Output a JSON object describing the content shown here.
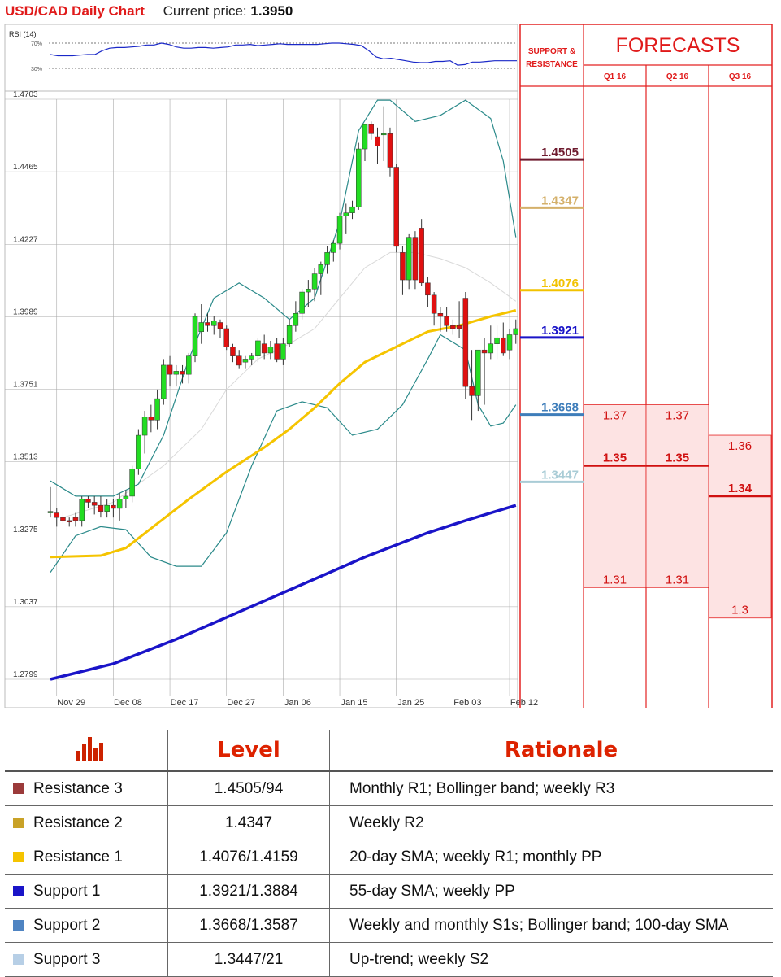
{
  "header": {
    "title": "USD/CAD Daily Chart",
    "current_price_label": "Current price:",
    "current_price": "1.3950"
  },
  "rsi": {
    "label": "RSI (14)",
    "level_high": "70%",
    "level_low": "30%",
    "values": [
      52,
      50,
      50,
      50,
      51,
      52,
      52,
      58,
      62,
      63,
      63,
      64,
      65,
      67,
      67,
      70,
      68,
      64,
      62,
      62,
      63,
      63,
      62,
      63,
      64,
      67,
      67,
      68,
      66,
      67,
      68,
      69,
      68,
      68,
      68,
      68,
      68,
      69,
      70,
      70,
      69,
      68,
      66,
      58,
      48,
      45,
      46,
      44,
      42,
      40,
      39,
      39,
      41,
      41,
      42,
      35,
      36,
      40,
      40,
      41,
      42,
      42,
      42,
      42
    ]
  },
  "chart_data": {
    "type": "candlestick",
    "title": "USD/CAD Daily Chart",
    "y_ticks": [
      "1.4703",
      "1.4465",
      "1.4227",
      "1.3989",
      "1.3751",
      "1.3513",
      "1.3275",
      "1.3037",
      "1.2799"
    ],
    "ylim": [
      1.2799,
      1.4703
    ],
    "x_ticks": [
      "Nov 29",
      "Dec 08",
      "Dec 17",
      "Dec 27",
      "Jan 06",
      "Jan 15",
      "Jan 25",
      "Feb 03",
      "Feb 12"
    ],
    "x_tick_index": [
      1,
      10,
      19,
      28,
      37,
      46,
      55,
      64,
      73
    ],
    "n_bars": 75,
    "candles": [
      [
        1.3345,
        1.343,
        1.333,
        1.335
      ],
      [
        1.3345,
        1.336,
        1.33,
        1.333
      ],
      [
        1.333,
        1.3345,
        1.331,
        1.332
      ],
      [
        1.332,
        1.333,
        1.33,
        1.3315
      ],
      [
        1.333,
        1.3345,
        1.33,
        1.332
      ],
      [
        1.332,
        1.34,
        1.33,
        1.339
      ],
      [
        1.339,
        1.34,
        1.336,
        1.338
      ],
      [
        1.338,
        1.34,
        1.334,
        1.337
      ],
      [
        1.337,
        1.34,
        1.333,
        1.335
      ],
      [
        1.335,
        1.339,
        1.333,
        1.337
      ],
      [
        1.337,
        1.339,
        1.333,
        1.336
      ],
      [
        1.336,
        1.341,
        1.332,
        1.339
      ],
      [
        1.339,
        1.342,
        1.336,
        1.34
      ],
      [
        1.34,
        1.35,
        1.338,
        1.349
      ],
      [
        1.349,
        1.362,
        1.347,
        1.36
      ],
      [
        1.36,
        1.368,
        1.354,
        1.366
      ],
      [
        1.366,
        1.37,
        1.361,
        1.365
      ],
      [
        1.365,
        1.375,
        1.362,
        1.372
      ],
      [
        1.372,
        1.385,
        1.37,
        1.383
      ],
      [
        1.383,
        1.386,
        1.376,
        1.38
      ],
      [
        1.38,
        1.383,
        1.376,
        1.381
      ],
      [
        1.381,
        1.383,
        1.377,
        1.38
      ],
      [
        1.38,
        1.387,
        1.377,
        1.386
      ],
      [
        1.386,
        1.4,
        1.384,
        1.399
      ],
      [
        1.394,
        1.403,
        1.39,
        1.397
      ],
      [
        1.397,
        1.4,
        1.394,
        1.396
      ],
      [
        1.396,
        1.399,
        1.393,
        1.3975
      ],
      [
        1.397,
        1.398,
        1.392,
        1.395
      ],
      [
        1.395,
        1.396,
        1.388,
        1.389
      ],
      [
        1.389,
        1.39,
        1.384,
        1.386
      ],
      [
        1.386,
        1.388,
        1.382,
        1.383
      ],
      [
        1.384,
        1.386,
        1.382,
        1.385
      ],
      [
        1.385,
        1.387,
        1.383,
        1.386
      ],
      [
        1.386,
        1.392,
        1.384,
        1.391
      ],
      [
        1.39,
        1.393,
        1.385,
        1.387
      ],
      [
        1.387,
        1.391,
        1.385,
        1.389
      ],
      [
        1.39,
        1.392,
        1.384,
        1.385
      ],
      [
        1.385,
        1.392,
        1.383,
        1.39
      ],
      [
        1.39,
        1.398,
        1.389,
        1.396
      ],
      [
        1.396,
        1.404,
        1.394,
        1.4
      ],
      [
        1.4,
        1.408,
        1.398,
        1.407
      ],
      [
        1.407,
        1.411,
        1.402,
        1.408
      ],
      [
        1.408,
        1.415,
        1.404,
        1.413
      ],
      [
        1.413,
        1.417,
        1.406,
        1.416
      ],
      [
        1.416,
        1.422,
        1.413,
        1.42
      ],
      [
        1.42,
        1.424,
        1.417,
        1.423
      ],
      [
        1.423,
        1.433,
        1.421,
        1.432
      ],
      [
        1.432,
        1.436,
        1.426,
        1.433
      ],
      [
        1.433,
        1.437,
        1.431,
        1.435
      ],
      [
        1.435,
        1.456,
        1.434,
        1.454
      ],
      [
        1.454,
        1.462,
        1.45,
        1.462
      ],
      [
        1.462,
        1.463,
        1.457,
        1.459
      ],
      [
        1.458,
        1.461,
        1.449,
        1.455
      ],
      [
        1.459,
        1.468,
        1.45,
        1.459
      ],
      [
        1.459,
        1.461,
        1.445,
        1.448
      ],
      [
        1.448,
        1.449,
        1.42,
        1.422
      ],
      [
        1.42,
        1.422,
        1.406,
        1.411
      ],
      [
        1.411,
        1.426,
        1.408,
        1.425
      ],
      [
        1.425,
        1.427,
        1.408,
        1.411
      ],
      [
        1.428,
        1.431,
        1.409,
        1.41
      ],
      [
        1.41,
        1.412,
        1.402,
        1.406
      ],
      [
        1.406,
        1.407,
        1.396,
        1.4
      ],
      [
        1.4,
        1.402,
        1.394,
        1.399
      ],
      [
        1.399,
        1.402,
        1.394,
        1.396
      ],
      [
        1.396,
        1.398,
        1.393,
        1.395
      ],
      [
        1.396,
        1.404,
        1.392,
        1.395
      ],
      [
        1.405,
        1.407,
        1.372,
        1.376
      ],
      [
        1.376,
        1.388,
        1.365,
        1.373
      ],
      [
        1.373,
        1.388,
        1.368,
        1.388
      ],
      [
        1.388,
        1.392,
        1.37,
        1.387
      ],
      [
        1.387,
        1.396,
        1.385,
        1.39
      ],
      [
        1.39,
        1.396,
        1.385,
        1.392
      ],
      [
        1.392,
        1.397,
        1.386,
        1.387
      ],
      [
        1.388,
        1.395,
        1.385,
        1.393
      ],
      [
        1.393,
        1.398,
        1.39,
        1.395
      ]
    ],
    "sma_yellow": [
      [
        0,
        1.32
      ],
      [
        8,
        1.3205
      ],
      [
        12,
        1.323
      ],
      [
        17,
        1.331
      ],
      [
        22,
        1.339
      ],
      [
        28,
        1.348
      ],
      [
        34,
        1.356
      ],
      [
        38,
        1.362
      ],
      [
        42,
        1.369
      ],
      [
        46,
        1.377
      ],
      [
        50,
        1.384
      ],
      [
        55,
        1.389
      ],
      [
        60,
        1.394
      ],
      [
        65,
        1.396
      ],
      [
        70,
        1.399
      ],
      [
        74,
        1.401
      ]
    ],
    "sma_blue": [
      [
        0,
        1.2799
      ],
      [
        10,
        1.285
      ],
      [
        20,
        1.293
      ],
      [
        30,
        1.302
      ],
      [
        40,
        1.311
      ],
      [
        50,
        1.32
      ],
      [
        60,
        1.328
      ],
      [
        66,
        1.332
      ],
      [
        74,
        1.337
      ]
    ],
    "sma_gray": [
      [
        2,
        1.333
      ],
      [
        10,
        1.338
      ],
      [
        18,
        1.35
      ],
      [
        24,
        1.362
      ],
      [
        28,
        1.375
      ],
      [
        33,
        1.385
      ],
      [
        38,
        1.39
      ],
      [
        42,
        1.395
      ],
      [
        46,
        1.405
      ],
      [
        50,
        1.415
      ],
      [
        54,
        1.42
      ],
      [
        58,
        1.42
      ],
      [
        62,
        1.418
      ],
      [
        66,
        1.415
      ],
      [
        70,
        1.41
      ],
      [
        74,
        1.404
      ]
    ],
    "bb_upper": [
      [
        0,
        1.345
      ],
      [
        4,
        1.34
      ],
      [
        10,
        1.34
      ],
      [
        14,
        1.344
      ],
      [
        18,
        1.36
      ],
      [
        22,
        1.385
      ],
      [
        26,
        1.405
      ],
      [
        30,
        1.41
      ],
      [
        34,
        1.405
      ],
      [
        38,
        1.398
      ],
      [
        42,
        1.405
      ],
      [
        46,
        1.43
      ],
      [
        49,
        1.46
      ],
      [
        52,
        1.47
      ],
      [
        54,
        1.47
      ],
      [
        58,
        1.463
      ],
      [
        62,
        1.465
      ],
      [
        66,
        1.47
      ],
      [
        70,
        1.464
      ],
      [
        72,
        1.45
      ],
      [
        74,
        1.425
      ]
    ],
    "bb_lower": [
      [
        0,
        1.315
      ],
      [
        4,
        1.327
      ],
      [
        8,
        1.33
      ],
      [
        12,
        1.329
      ],
      [
        16,
        1.32
      ],
      [
        20,
        1.317
      ],
      [
        24,
        1.317
      ],
      [
        28,
        1.328
      ],
      [
        32,
        1.35
      ],
      [
        36,
        1.368
      ],
      [
        40,
        1.371
      ],
      [
        44,
        1.369
      ],
      [
        48,
        1.36
      ],
      [
        52,
        1.362
      ],
      [
        56,
        1.37
      ],
      [
        60,
        1.385
      ],
      [
        62,
        1.393
      ],
      [
        66,
        1.388
      ],
      [
        68,
        1.37
      ],
      [
        70,
        1.363
      ],
      [
        72,
        1.364
      ],
      [
        74,
        1.37
      ]
    ],
    "support_resistance": [
      {
        "value": "1.4505",
        "price": 1.4505,
        "color": "#6e1a2e"
      },
      {
        "value": "1.4347",
        "price": 1.4347,
        "color": "#d4b06a"
      },
      {
        "value": "1.4076",
        "price": 1.4076,
        "color": "#f2c200"
      },
      {
        "value": "1.3921",
        "price": 1.3921,
        "color": "#1a14c8"
      },
      {
        "value": "1.3668",
        "price": 1.3668,
        "color": "#3e7dba"
      },
      {
        "value": "1.3447",
        "price": 1.3447,
        "color": "#a9ccd6"
      }
    ],
    "forecasts": [
      {
        "label": "Q1 16",
        "high": 1.37,
        "mid": 1.35,
        "low": 1.31,
        "high_text": "1.37",
        "mid_text": "1.35",
        "low_text": "1.31"
      },
      {
        "label": "Q2 16",
        "high": 1.37,
        "mid": 1.35,
        "low": 1.31,
        "high_text": "1.37",
        "mid_text": "1.35",
        "low_text": "1.31"
      },
      {
        "label": "Q3 16",
        "high": 1.36,
        "mid": 1.34,
        "low": 1.3,
        "high_text": "1.36",
        "mid_text": "1.34",
        "low_text": "1.3"
      }
    ]
  },
  "panel": {
    "support_header_line1": "SUPPORT &",
    "support_header_line2": "RESISTANCE",
    "forecasts_title": "FORECASTS"
  },
  "table": {
    "header_level": "Level",
    "header_rationale": "Rationale",
    "rows": [
      {
        "name": "Resistance 3",
        "level": "1.4505/94",
        "rationale": "Monthly R1; Bollinger band; weekly R3",
        "color": "#9b3a3a"
      },
      {
        "name": "Resistance 2",
        "level": "1.4347",
        "rationale": "Weekly R2",
        "color": "#c9a227"
      },
      {
        "name": "Resistance 1",
        "level": "1.4076/1.4159",
        "rationale": "20-day SMA; weekly R1; monthly PP",
        "color": "#f5c400"
      },
      {
        "name": "Support 1",
        "level": "1.3921/1.3884",
        "rationale": "55-day SMA; weekly PP",
        "color": "#1a14c8"
      },
      {
        "name": "Support 2",
        "level": "1.3668/1.3587",
        "rationale": "Weekly and monthly S1s; Bollinger band; 100-day SMA",
        "color": "#4f84c2"
      },
      {
        "name": "Support 3",
        "level": "1.3447/21",
        "rationale": "Up-trend; weekly S2",
        "color": "#b7cfe6"
      }
    ]
  }
}
